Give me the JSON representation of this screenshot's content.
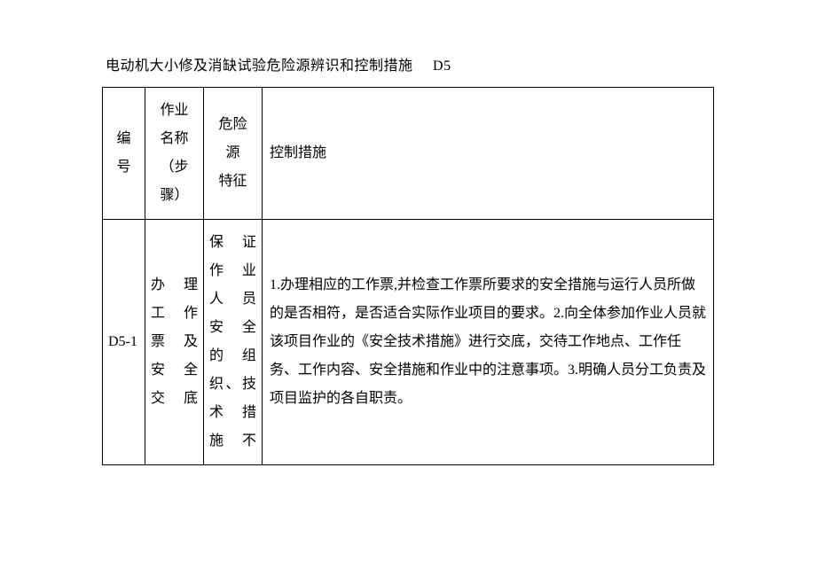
{
  "title_text": "电动机大小修及消缺试验危险源辨识和控制措施",
  "title_code": "D5",
  "headers": {
    "id": "编号",
    "step": "作业名称（步骤）",
    "risk": "危险源特征",
    "ctrl": "控制措施"
  },
  "row": {
    "id": "D5-1",
    "step": "办理工作票及安全交底",
    "risk": "保证作业人员安全的组织、技术措施不",
    "ctrl": "1.办理相应的工作票,并检查工作票所要求的安全措施与运行人员所做的是否相符，是否适合实际作业项目的要求。2.向全体参加作业人员就该项目作业的《安全技术措施》进行交底，交待工作地点、工作任务、工作内容、安全措施和作业中的注意事项。3.明确人员分工负责及项目监护的各自职责。"
  },
  "colors": {
    "text": "#000000",
    "border": "#000000",
    "background": "#ffffff"
  },
  "font": {
    "family": "SimSun",
    "size_pt": 12,
    "line_height": 2.0
  }
}
